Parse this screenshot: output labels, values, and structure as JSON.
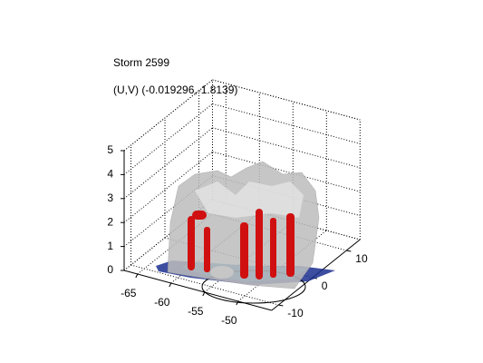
{
  "chart_data": {
    "type": "surface3d",
    "title": "Storm 2599",
    "subtitle": "(U,V) (-0.019296,-1.8139)",
    "xlim": [
      -67,
      -45
    ],
    "ylim": [
      -12,
      14
    ],
    "zlim": [
      0,
      5
    ],
    "xticks": [
      -65,
      -60,
      -55,
      -50
    ],
    "yticks": [
      -10,
      0,
      10
    ],
    "zticks": [
      0,
      1,
      2,
      3,
      4,
      5
    ],
    "grid": true
  }
}
